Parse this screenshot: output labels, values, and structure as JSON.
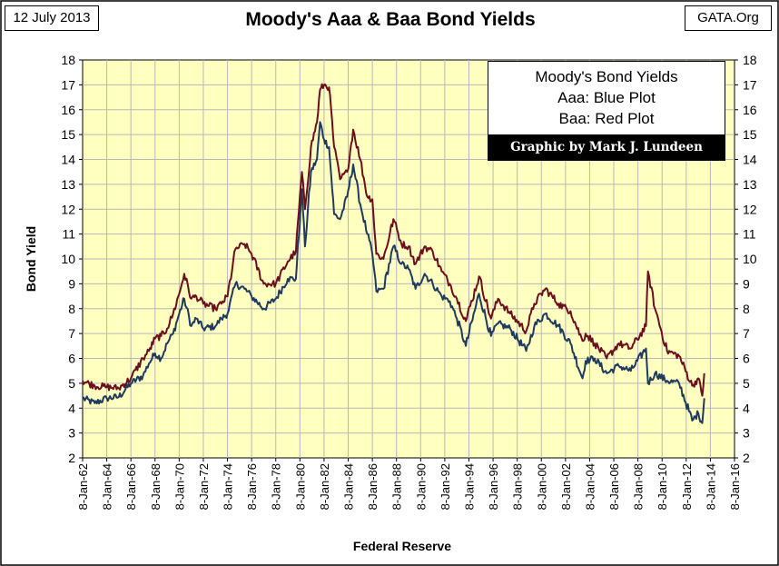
{
  "header": {
    "date_label": "12 July 2013",
    "source_label": "GATA.Org"
  },
  "legend": {
    "title": "Moody's Bond Yields",
    "line1": "Aaa: Blue Plot",
    "line2": "Baa: Red Plot",
    "credit": "Graphic by Mark J. Lundeen"
  },
  "colors": {
    "plot_background": "#ffffc0",
    "aaa_line": "#1f3a5f",
    "baa_line": "#6b0e1e",
    "grid": "#b8b8b8"
  },
  "chart_data": {
    "type": "line",
    "title": "Moody's Aaa & Baa Bond Yields",
    "xlabel": "Federal Reserve",
    "ylabel": "Bond  Yield",
    "ylim": [
      2,
      18
    ],
    "y_ticks": [
      2,
      3,
      4,
      5,
      6,
      7,
      8,
      9,
      10,
      11,
      12,
      13,
      14,
      15,
      16,
      17,
      18
    ],
    "x_range": [
      "1962-01-08",
      "2016-01-08"
    ],
    "x_tick_labels": [
      "8-Jan-62",
      "8-Jan-64",
      "8-Jan-66",
      "8-Jan-68",
      "8-Jan-70",
      "8-Jan-72",
      "8-Jan-74",
      "8-Jan-76",
      "8-Jan-78",
      "8-Jan-80",
      "8-Jan-82",
      "8-Jan-84",
      "8-Jan-86",
      "8-Jan-88",
      "8-Jan-90",
      "8-Jan-92",
      "8-Jan-94",
      "8-Jan-96",
      "8-Jan-98",
      "8-Jan-00",
      "8-Jan-02",
      "8-Jan-04",
      "8-Jan-06",
      "8-Jan-08",
      "8-Jan-10",
      "8-Jan-12",
      "8-Jan-14",
      "8-Jan-16"
    ],
    "grid": true,
    "legend_placement": "top-right",
    "series": [
      {
        "name": "Aaa",
        "color": "#1f3a5f",
        "x": [
          "1962-01-08",
          "1963-01-08",
          "1964-01-08",
          "1965-01-08",
          "1966-01-08",
          "1967-01-08",
          "1967-07-08",
          "1968-01-08",
          "1968-07-08",
          "1969-01-08",
          "1969-07-08",
          "1970-01-08",
          "1970-06-08",
          "1971-01-08",
          "1971-06-08",
          "1972-01-08",
          "1973-01-08",
          "1973-07-08",
          "1974-01-08",
          "1974-09-08",
          "1975-06-08",
          "1976-01-08",
          "1977-01-08",
          "1978-01-08",
          "1979-01-08",
          "1979-09-08",
          "1980-03-08",
          "1980-06-08",
          "1980-12-08",
          "1981-06-08",
          "1981-09-08",
          "1982-01-08",
          "1982-06-08",
          "1982-11-08",
          "1983-05-08",
          "1983-12-08",
          "1984-06-08",
          "1985-01-08",
          "1985-08-08",
          "1986-01-08",
          "1986-05-08",
          "1986-12-08",
          "1987-10-08",
          "1988-06-08",
          "1989-01-08",
          "1989-08-08",
          "1990-05-08",
          "1991-01-08",
          "1991-10-08",
          "1992-06-08",
          "1993-01-08",
          "1993-10-08",
          "1994-11-08",
          "1995-11-08",
          "1996-06-08",
          "1997-06-08",
          "1998-10-08",
          "1999-06-08",
          "2000-05-08",
          "2001-06-08",
          "2002-06-08",
          "2003-06-08",
          "2003-09-08",
          "2004-06-08",
          "2005-06-08",
          "2006-06-08",
          "2007-06-08",
          "2008-09-08",
          "2008-11-08",
          "2009-06-08",
          "2010-06-08",
          "2011-06-08",
          "2012-07-08",
          "2013-01-08",
          "2013-05-08",
          "2013-07-08"
        ],
        "values": [
          4.4,
          4.2,
          4.4,
          4.45,
          5.0,
          5.3,
          5.8,
          6.2,
          6.0,
          6.6,
          7.0,
          7.8,
          8.4,
          7.3,
          7.6,
          7.2,
          7.3,
          7.6,
          7.8,
          9.0,
          8.8,
          8.5,
          8.0,
          8.4,
          9.2,
          9.2,
          12.8,
          10.5,
          13.5,
          14.0,
          15.5,
          14.8,
          14.5,
          11.8,
          11.6,
          12.5,
          13.8,
          12.2,
          11.0,
          10.2,
          8.7,
          8.8,
          10.5,
          9.8,
          9.6,
          8.8,
          9.4,
          9.0,
          8.5,
          8.3,
          7.6,
          6.5,
          8.6,
          6.9,
          7.4,
          7.2,
          6.3,
          7.3,
          7.8,
          7.3,
          6.6,
          5.2,
          5.9,
          6.0,
          5.4,
          5.7,
          5.5,
          6.4,
          5.0,
          5.4,
          5.1,
          5.0,
          3.5,
          3.8,
          3.4,
          4.4
        ]
      },
      {
        "name": "Baa",
        "color": "#6b0e1e",
        "x": [
          "1962-01-08",
          "1963-01-08",
          "1964-01-08",
          "1965-01-08",
          "1966-01-08",
          "1967-01-08",
          "1967-07-08",
          "1968-01-08",
          "1968-07-08",
          "1969-01-08",
          "1969-07-08",
          "1970-01-08",
          "1970-06-08",
          "1971-01-08",
          "1971-06-08",
          "1972-01-08",
          "1973-01-08",
          "1973-07-08",
          "1974-01-08",
          "1974-09-08",
          "1975-06-08",
          "1976-01-08",
          "1977-01-08",
          "1978-01-08",
          "1979-01-08",
          "1979-09-08",
          "1980-03-08",
          "1980-06-08",
          "1980-12-08",
          "1981-06-08",
          "1981-09-08",
          "1982-01-08",
          "1982-06-08",
          "1982-11-08",
          "1983-05-08",
          "1983-12-08",
          "1984-06-08",
          "1985-01-08",
          "1985-08-08",
          "1986-01-08",
          "1986-05-08",
          "1986-12-08",
          "1987-10-08",
          "1988-06-08",
          "1989-01-08",
          "1989-08-08",
          "1990-05-08",
          "1991-01-08",
          "1991-10-08",
          "1992-06-08",
          "1993-01-08",
          "1993-10-08",
          "1994-11-08",
          "1995-11-08",
          "1996-06-08",
          "1997-06-08",
          "1998-10-08",
          "1999-06-08",
          "2000-05-08",
          "2001-06-08",
          "2002-06-08",
          "2003-06-08",
          "2003-09-08",
          "2004-06-08",
          "2005-06-08",
          "2006-06-08",
          "2007-06-08",
          "2008-09-08",
          "2008-11-08",
          "2009-06-08",
          "2010-06-08",
          "2011-06-08",
          "2012-07-08",
          "2013-01-08",
          "2013-05-08",
          "2013-07-08"
        ],
        "values": [
          5.1,
          4.9,
          4.85,
          4.8,
          5.2,
          6.0,
          6.3,
          6.8,
          6.9,
          7.2,
          7.8,
          8.6,
          9.4,
          8.4,
          8.5,
          8.2,
          8.0,
          8.2,
          8.5,
          10.4,
          10.6,
          10.2,
          9.0,
          9.0,
          9.9,
          10.3,
          13.5,
          12.0,
          14.5,
          15.5,
          16.8,
          17.0,
          16.9,
          14.5,
          13.2,
          13.5,
          15.2,
          14.0,
          12.5,
          12.4,
          10.2,
          10.0,
          11.6,
          10.6,
          10.5,
          9.8,
          10.5,
          10.3,
          9.5,
          9.0,
          8.4,
          7.5,
          9.3,
          7.6,
          8.4,
          7.8,
          7.1,
          8.2,
          8.8,
          8.2,
          7.9,
          6.7,
          7.0,
          6.6,
          6.0,
          6.6,
          6.4,
          7.3,
          9.5,
          8.0,
          6.3,
          6.1,
          4.9,
          5.2,
          4.5,
          5.4
        ]
      }
    ]
  }
}
